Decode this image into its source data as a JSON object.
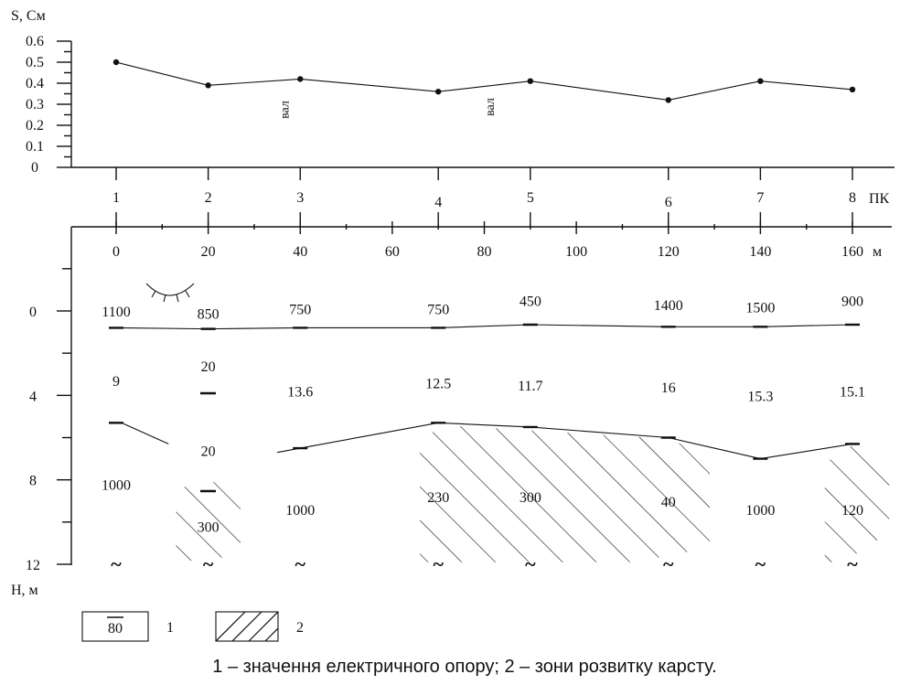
{
  "chart_data": [
    {
      "type": "line",
      "ylabel": "S, См",
      "yticks": [
        "0",
        "0.1",
        "0.2",
        "0.3",
        "0.4",
        "0.5",
        "0.6"
      ],
      "ylim": [
        0,
        0.6
      ],
      "points": [
        {
          "pk": 1,
          "S": 0.5
        },
        {
          "pk": 2,
          "S": 0.39
        },
        {
          "pk": 3,
          "S": 0.42
        },
        {
          "pk": 4,
          "S": 0.36
        },
        {
          "pk": 5,
          "S": 0.41
        },
        {
          "pk": 6,
          "S": 0.32
        },
        {
          "pk": 7,
          "S": 0.41
        },
        {
          "pk": 8,
          "S": 0.37
        }
      ],
      "annotations": [
        {
          "text": "вал",
          "near_pk": 3
        },
        {
          "text": "вал",
          "near_pk": 5
        }
      ]
    },
    {
      "type": "geoelectric-section",
      "pk_label": "ПК",
      "pk_positions": [
        {
          "label": "1",
          "x": 0
        },
        {
          "label": "2",
          "x": 20
        },
        {
          "label": "3",
          "x": 40
        },
        {
          "label": "4",
          "x": 70
        },
        {
          "label": "5",
          "x": 90
        },
        {
          "label": "6",
          "x": 120
        },
        {
          "label": "7",
          "x": 140
        },
        {
          "label": "8",
          "x": 160
        }
      ],
      "xunit": "м",
      "xticks": [
        "0",
        "20",
        "40",
        "60",
        "80",
        "100",
        "120",
        "140",
        "160"
      ],
      "xlim": [
        0,
        160
      ],
      "ylabel": "H, м",
      "yticks": [
        "0",
        "4",
        "8",
        "12"
      ],
      "ylim": [
        0,
        12
      ],
      "boundary1": [
        [
          0,
          0.8
        ],
        [
          20,
          0.85
        ],
        [
          40,
          0.8
        ],
        [
          70,
          0.8
        ],
        [
          90,
          0.65
        ],
        [
          120,
          0.75
        ],
        [
          140,
          0.75
        ],
        [
          160,
          0.65
        ]
      ],
      "boundary2": [
        [
          0,
          5.3
        ],
        [
          7,
          6.3
        ],
        [
          35,
          6.7
        ],
        [
          40,
          6.5
        ],
        [
          70,
          5.3
        ],
        [
          90,
          5.5
        ],
        [
          120,
          6.0
        ],
        [
          140,
          7.0
        ],
        [
          160,
          6.3
        ]
      ],
      "layer1_values": [
        {
          "text": "1100",
          "x": 0,
          "h": 0
        },
        {
          "text": "850",
          "x": 20,
          "h": 0.1
        },
        {
          "text": "750",
          "x": 40,
          "h": -0.1
        },
        {
          "text": "750",
          "x": 70,
          "h": -0.1
        },
        {
          "text": "450",
          "x": 90,
          "h": -0.5
        },
        {
          "text": "1400",
          "x": 120,
          "h": -0.3
        },
        {
          "text": "1500",
          "x": 140,
          "h": -0.2
        },
        {
          "text": "900",
          "x": 160,
          "h": -0.5
        }
      ],
      "layer2_values": [
        {
          "text": "9",
          "x": 0,
          "h": 3.3
        },
        {
          "text": "20",
          "x": 20,
          "h": 2.6
        },
        {
          "text": "13.6",
          "x": 40,
          "h": 3.8
        },
        {
          "text": "12.5",
          "x": 70,
          "h": 3.4
        },
        {
          "text": "11.7",
          "x": 90,
          "h": 3.5
        },
        {
          "text": "16",
          "x": 120,
          "h": 3.6
        },
        {
          "text": "15.3",
          "x": 140,
          "h": 4.0
        },
        {
          "text": "15.1",
          "x": 160,
          "h": 3.8
        },
        {
          "text": "20",
          "x": 20,
          "h": 6.6
        }
      ],
      "layer3_values": [
        {
          "text": "1000",
          "x": 0,
          "h": 8.2
        },
        {
          "text": "300",
          "x": 20,
          "h": 10.2
        },
        {
          "text": "1000",
          "x": 40,
          "h": 9.4
        },
        {
          "text": "230",
          "x": 70,
          "h": 8.8
        },
        {
          "text": "300",
          "x": 90,
          "h": 8.8
        },
        {
          "text": "40",
          "x": 120,
          "h": 9.0
        },
        {
          "text": "1000",
          "x": 140,
          "h": 9.4
        },
        {
          "text": "120",
          "x": 160,
          "h": 9.4
        }
      ],
      "karst_zones": [
        [
          13,
          27
        ],
        [
          66,
          129
        ],
        [
          154,
          168
        ]
      ],
      "tilde": "~"
    }
  ],
  "legend": {
    "item1_value": "80",
    "item1_number": "1",
    "item2_number": "2"
  },
  "caption": "1 – значення електричного опору; 2 – зони розвитку карсту."
}
